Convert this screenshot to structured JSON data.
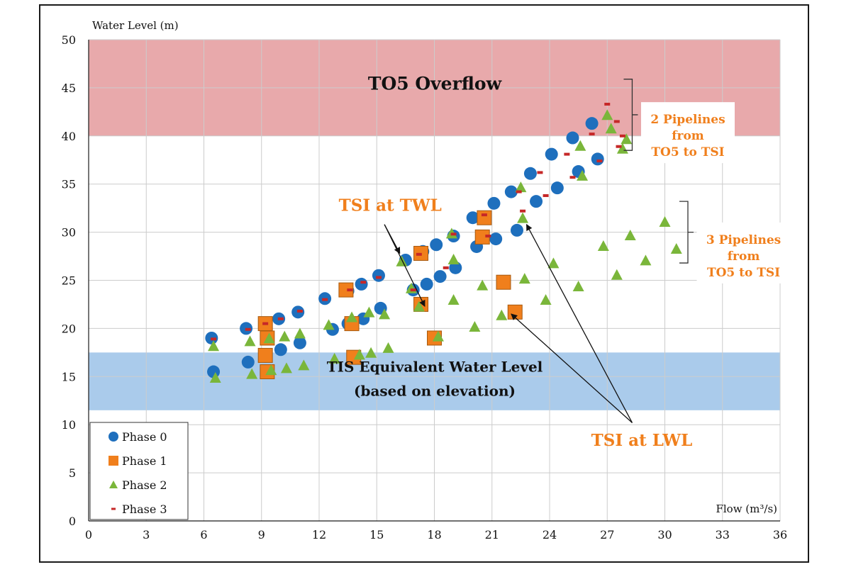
{
  "chart_data": {
    "type": "scatter",
    "title": "",
    "xlabel": "Flow",
    "xlabel_unit": "(m³/s)",
    "ylabel": "Water Level (m)",
    "xlim": [
      0,
      36
    ],
    "ylim": [
      0,
      50
    ],
    "xticks": [
      0,
      3,
      6,
      9,
      12,
      15,
      18,
      21,
      24,
      27,
      30,
      33,
      36
    ],
    "yticks": [
      0,
      5,
      10,
      15,
      20,
      25,
      30,
      35,
      40,
      45,
      50
    ],
    "grid": true,
    "legend_position": "bottom-left",
    "bands": [
      {
        "name": "to5-overflow",
        "label": "TO5 Overflow",
        "ymin": 40,
        "ymax": 50,
        "color": "#e8a9ab"
      },
      {
        "name": "tis-equivalent",
        "label": "TIS Equivalent Water Level",
        "label2": "(based on elevation)",
        "ymin": 11.5,
        "ymax": 17.5,
        "color": "#aacbeb"
      }
    ],
    "series": [
      {
        "name": "Phase 0",
        "marker": "circle",
        "color": "#1e6fbd",
        "points": [
          [
            6.4,
            19
          ],
          [
            6.5,
            15.5
          ],
          [
            8.2,
            20
          ],
          [
            8.3,
            16.5
          ],
          [
            9.2,
            20.5
          ],
          [
            9.2,
            17.1
          ],
          [
            9.9,
            21
          ],
          [
            10,
            17.8
          ],
          [
            10.9,
            21.7
          ],
          [
            11,
            18.5
          ],
          [
            12.3,
            23.1
          ],
          [
            12.7,
            19.9
          ],
          [
            13.5,
            23.9
          ],
          [
            13.5,
            20.5
          ],
          [
            14.2,
            24.6
          ],
          [
            14.3,
            21
          ],
          [
            15.1,
            25.5
          ],
          [
            15.2,
            22.1
          ],
          [
            16.5,
            27.1
          ],
          [
            16.9,
            24
          ],
          [
            17.4,
            28
          ],
          [
            17.6,
            24.6
          ],
          [
            18.1,
            28.7
          ],
          [
            18.3,
            25.4
          ],
          [
            19,
            29.6
          ],
          [
            19.1,
            26.3
          ],
          [
            20,
            31.5
          ],
          [
            20.2,
            28.5
          ],
          [
            21.1,
            33
          ],
          [
            21.2,
            29.3
          ],
          [
            22,
            34.2
          ],
          [
            22.3,
            30.2
          ],
          [
            23,
            36.1
          ],
          [
            23.3,
            33.2
          ],
          [
            24.1,
            38.1
          ],
          [
            24.4,
            34.6
          ],
          [
            25.2,
            39.8
          ],
          [
            25.5,
            36.3
          ],
          [
            26.2,
            41.3
          ],
          [
            26.5,
            37.6
          ]
        ]
      },
      {
        "name": "Phase 1",
        "marker": "square",
        "color": "#f07f1c",
        "points": [
          [
            9.2,
            20.5
          ],
          [
            9.3,
            19
          ],
          [
            9.2,
            17.2
          ],
          [
            9.3,
            15.5
          ],
          [
            13.4,
            24
          ],
          [
            13.7,
            20.5
          ],
          [
            13.8,
            17
          ],
          [
            17.3,
            27.8
          ],
          [
            17.3,
            22.5
          ],
          [
            18,
            19
          ],
          [
            20.6,
            31.5
          ],
          [
            20.5,
            29.5
          ],
          [
            21.6,
            24.8
          ],
          [
            22.2,
            21.7
          ]
        ]
      },
      {
        "name": "Phase 2",
        "marker": "triangle",
        "color": "#7ab63a",
        "points": [
          [
            6.5,
            18.1
          ],
          [
            6.6,
            14.8
          ],
          [
            8.4,
            18.6
          ],
          [
            8.5,
            15.2
          ],
          [
            9.4,
            18.9
          ],
          [
            9.5,
            15.6
          ],
          [
            10.2,
            19.1
          ],
          [
            10.3,
            15.8
          ],
          [
            11,
            19.4
          ],
          [
            11.2,
            16.1
          ],
          [
            12.5,
            20.3
          ],
          [
            12.8,
            16.8
          ],
          [
            13.7,
            21.1
          ],
          [
            14.1,
            17.2
          ],
          [
            14.6,
            21.6
          ],
          [
            14.7,
            17.4
          ],
          [
            15.4,
            21.4
          ],
          [
            15.6,
            17.9
          ],
          [
            17.2,
            22.2
          ],
          [
            18.2,
            19.1
          ],
          [
            19,
            22.9
          ],
          [
            20.1,
            20.1
          ],
          [
            20.5,
            24.4
          ],
          [
            21.5,
            21.3
          ],
          [
            22.7,
            25.1
          ],
          [
            23.8,
            22.9
          ],
          [
            24.2,
            26.7
          ],
          [
            25.5,
            24.3
          ],
          [
            26.8,
            28.5
          ],
          [
            27.5,
            25.5
          ],
          [
            28.2,
            29.6
          ],
          [
            29,
            27
          ],
          [
            30,
            31
          ],
          [
            30.6,
            28.2
          ],
          [
            16.3,
            26.9
          ],
          [
            18.9,
            29.8
          ],
          [
            22.5,
            34.6
          ],
          [
            25.6,
            38.9
          ],
          [
            27,
            42.1
          ],
          [
            27.2,
            40.7
          ],
          [
            28,
            39.6
          ],
          [
            16.8,
            24.1
          ],
          [
            19,
            27.1
          ],
          [
            22.6,
            31.4
          ],
          [
            25.7,
            35.8
          ],
          [
            27.8,
            38.6
          ]
        ]
      },
      {
        "name": "Phase 3",
        "marker": "dash",
        "color": "#c62828",
        "points": [
          [
            6.5,
            18.9
          ],
          [
            8.3,
            19.9
          ],
          [
            9.2,
            20.5
          ],
          [
            10,
            21
          ],
          [
            11,
            21.8
          ],
          [
            12.3,
            23
          ],
          [
            13.6,
            24
          ],
          [
            14.3,
            24.8
          ],
          [
            15.1,
            25.3
          ],
          [
            17.2,
            27.7
          ],
          [
            19,
            29.8
          ],
          [
            20.6,
            31.8
          ],
          [
            22.4,
            34.2
          ],
          [
            23.5,
            36.2
          ],
          [
            24.9,
            38.1
          ],
          [
            26.2,
            40.2
          ],
          [
            27,
            43.3
          ],
          [
            27.5,
            41.5
          ],
          [
            27.8,
            40
          ],
          [
            16.9,
            24
          ],
          [
            18.6,
            26.3
          ],
          [
            20.8,
            29.6
          ],
          [
            22.6,
            32.2
          ],
          [
            23.8,
            33.8
          ],
          [
            25.2,
            35.7
          ],
          [
            26.6,
            37.4
          ],
          [
            27.6,
            38.9
          ]
        ]
      }
    ],
    "annotations": [
      {
        "name": "tsi-at-twl",
        "text": "TSI at TWL",
        "x": 15.7,
        "y": 32.2
      },
      {
        "name": "tsi-at-lwl",
        "text": "TSI at LWL",
        "x": 28.8,
        "y": 7.8
      },
      {
        "name": "two-pipelines",
        "text": [
          "2 Pipelines",
          "from",
          "TO5 to TSI"
        ],
        "x": 31.2,
        "y": 41.3
      },
      {
        "name": "three-pipelines",
        "text": [
          "3 Pipelines",
          "from",
          "TO5 to TSI"
        ],
        "x": 34.1,
        "y": 28.8
      }
    ],
    "bracket_2_pipelines": [
      38.5,
      45.9
    ],
    "bracket_3_pipelines": [
      26.8,
      33.2
    ]
  },
  "colors": {
    "axis": "#1a1a1a",
    "grid": "#cccccc",
    "annotation_orange": "#f07f1c"
  }
}
